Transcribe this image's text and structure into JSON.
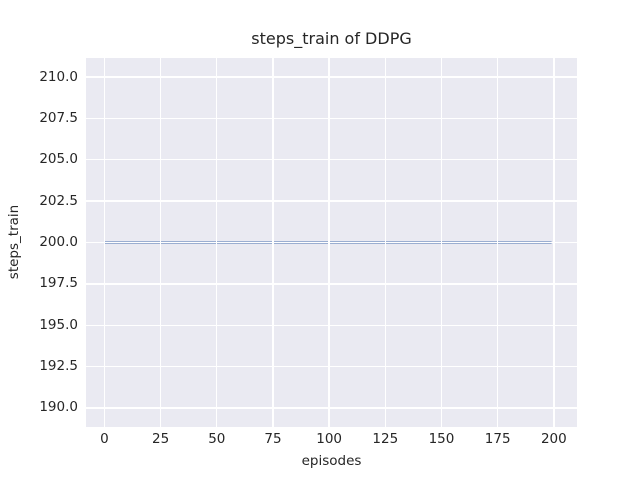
{
  "chart_data": {
    "type": "line",
    "title": "steps_train of DDPG",
    "xlabel": "episodes",
    "ylabel": "steps_train",
    "xlim": [
      -8.2,
      210.3
    ],
    "ylim": [
      188.85,
      211.15
    ],
    "xticks": [
      0,
      25,
      50,
      75,
      100,
      125,
      150,
      175,
      200
    ],
    "xtick_labels": [
      "0",
      "25",
      "50",
      "75",
      "100",
      "125",
      "150",
      "175",
      "200"
    ],
    "yticks": [
      190,
      192.5,
      195,
      197.5,
      200,
      202.5,
      205,
      207.5,
      210
    ],
    "ytick_labels": [
      "190.0",
      "192.5",
      "195.0",
      "197.5",
      "200.0",
      "202.5",
      "205.0",
      "207.5",
      "210.0"
    ],
    "grid": true,
    "legend": false,
    "series": [
      {
        "name": "steps_train",
        "color": "#4c72b0",
        "x": [
          0,
          199
        ],
        "y": [
          200,
          200
        ]
      }
    ],
    "style": {
      "figure_bg": "#ffffff",
      "axes_bg": "#eaeaf2",
      "grid_color": "#ffffff",
      "text_color": "#262626",
      "line_width": 2
    }
  }
}
